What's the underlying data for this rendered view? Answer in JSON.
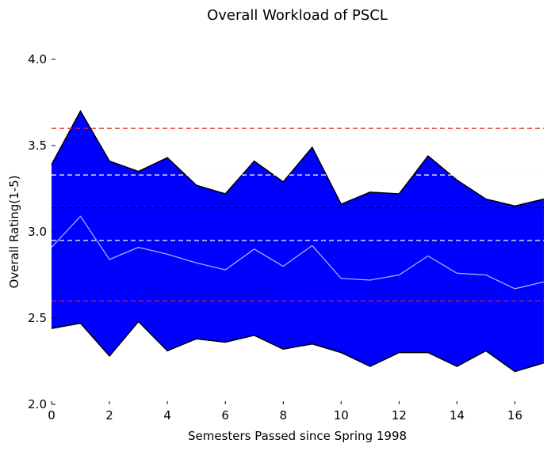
{
  "chart_data": {
    "type": "area",
    "title": "Overall Workload of PSCL",
    "xlabel": "Semesters Passed since Spring 1998",
    "ylabel": "Overall Rating(1-5)",
    "xlim": [
      0,
      17
    ],
    "ylim": [
      2.0,
      4.0
    ],
    "x_ticks": [
      0,
      2,
      4,
      6,
      8,
      10,
      12,
      14,
      16
    ],
    "y_ticks": [
      2.0,
      2.5,
      3.0,
      3.5,
      4.0
    ],
    "y_tick_labels": [
      "2.0",
      "2.5",
      "3.0",
      "3.5",
      "4.0"
    ],
    "grid": false,
    "x": [
      0,
      1,
      2,
      3,
      4,
      5,
      6,
      7,
      8,
      9,
      10,
      11,
      12,
      13,
      14,
      15,
      16,
      17
    ],
    "series": [
      {
        "role": "upper",
        "values": [
          3.39,
          3.7,
          3.41,
          3.35,
          3.43,
          3.27,
          3.22,
          3.41,
          3.29,
          3.49,
          3.16,
          3.23,
          3.22,
          3.44,
          3.3,
          3.19,
          3.15,
          3.19
        ]
      },
      {
        "role": "mean",
        "values": [
          2.91,
          3.09,
          2.84,
          2.91,
          2.87,
          2.82,
          2.78,
          2.9,
          2.8,
          2.92,
          2.73,
          2.72,
          2.75,
          2.86,
          2.76,
          2.75,
          2.67,
          2.71
        ]
      },
      {
        "role": "lower",
        "values": [
          2.44,
          2.47,
          2.28,
          2.48,
          2.31,
          2.38,
          2.36,
          2.4,
          2.32,
          2.35,
          2.3,
          2.22,
          2.3,
          2.3,
          2.22,
          2.31,
          2.19,
          2.24
        ]
      }
    ],
    "reference_lines": [
      {
        "y": 3.6,
        "style": "dashed",
        "color": "#dd2222"
      },
      {
        "y": 3.33,
        "style": "dashed",
        "color": "#d7e29a"
      },
      {
        "y": 3.33,
        "style": "dashed",
        "color": "#ffffff"
      },
      {
        "y": 3.14,
        "style": "dashed",
        "color": "#000000"
      },
      {
        "y": 2.95,
        "style": "dashed",
        "color": "#ffffff"
      },
      {
        "y": 2.6,
        "style": "dashed",
        "color": "#dd2222"
      }
    ],
    "colors": {
      "fill": "#0000ff",
      "outline": "#000000",
      "mean_line": "#9db3f5"
    }
  }
}
